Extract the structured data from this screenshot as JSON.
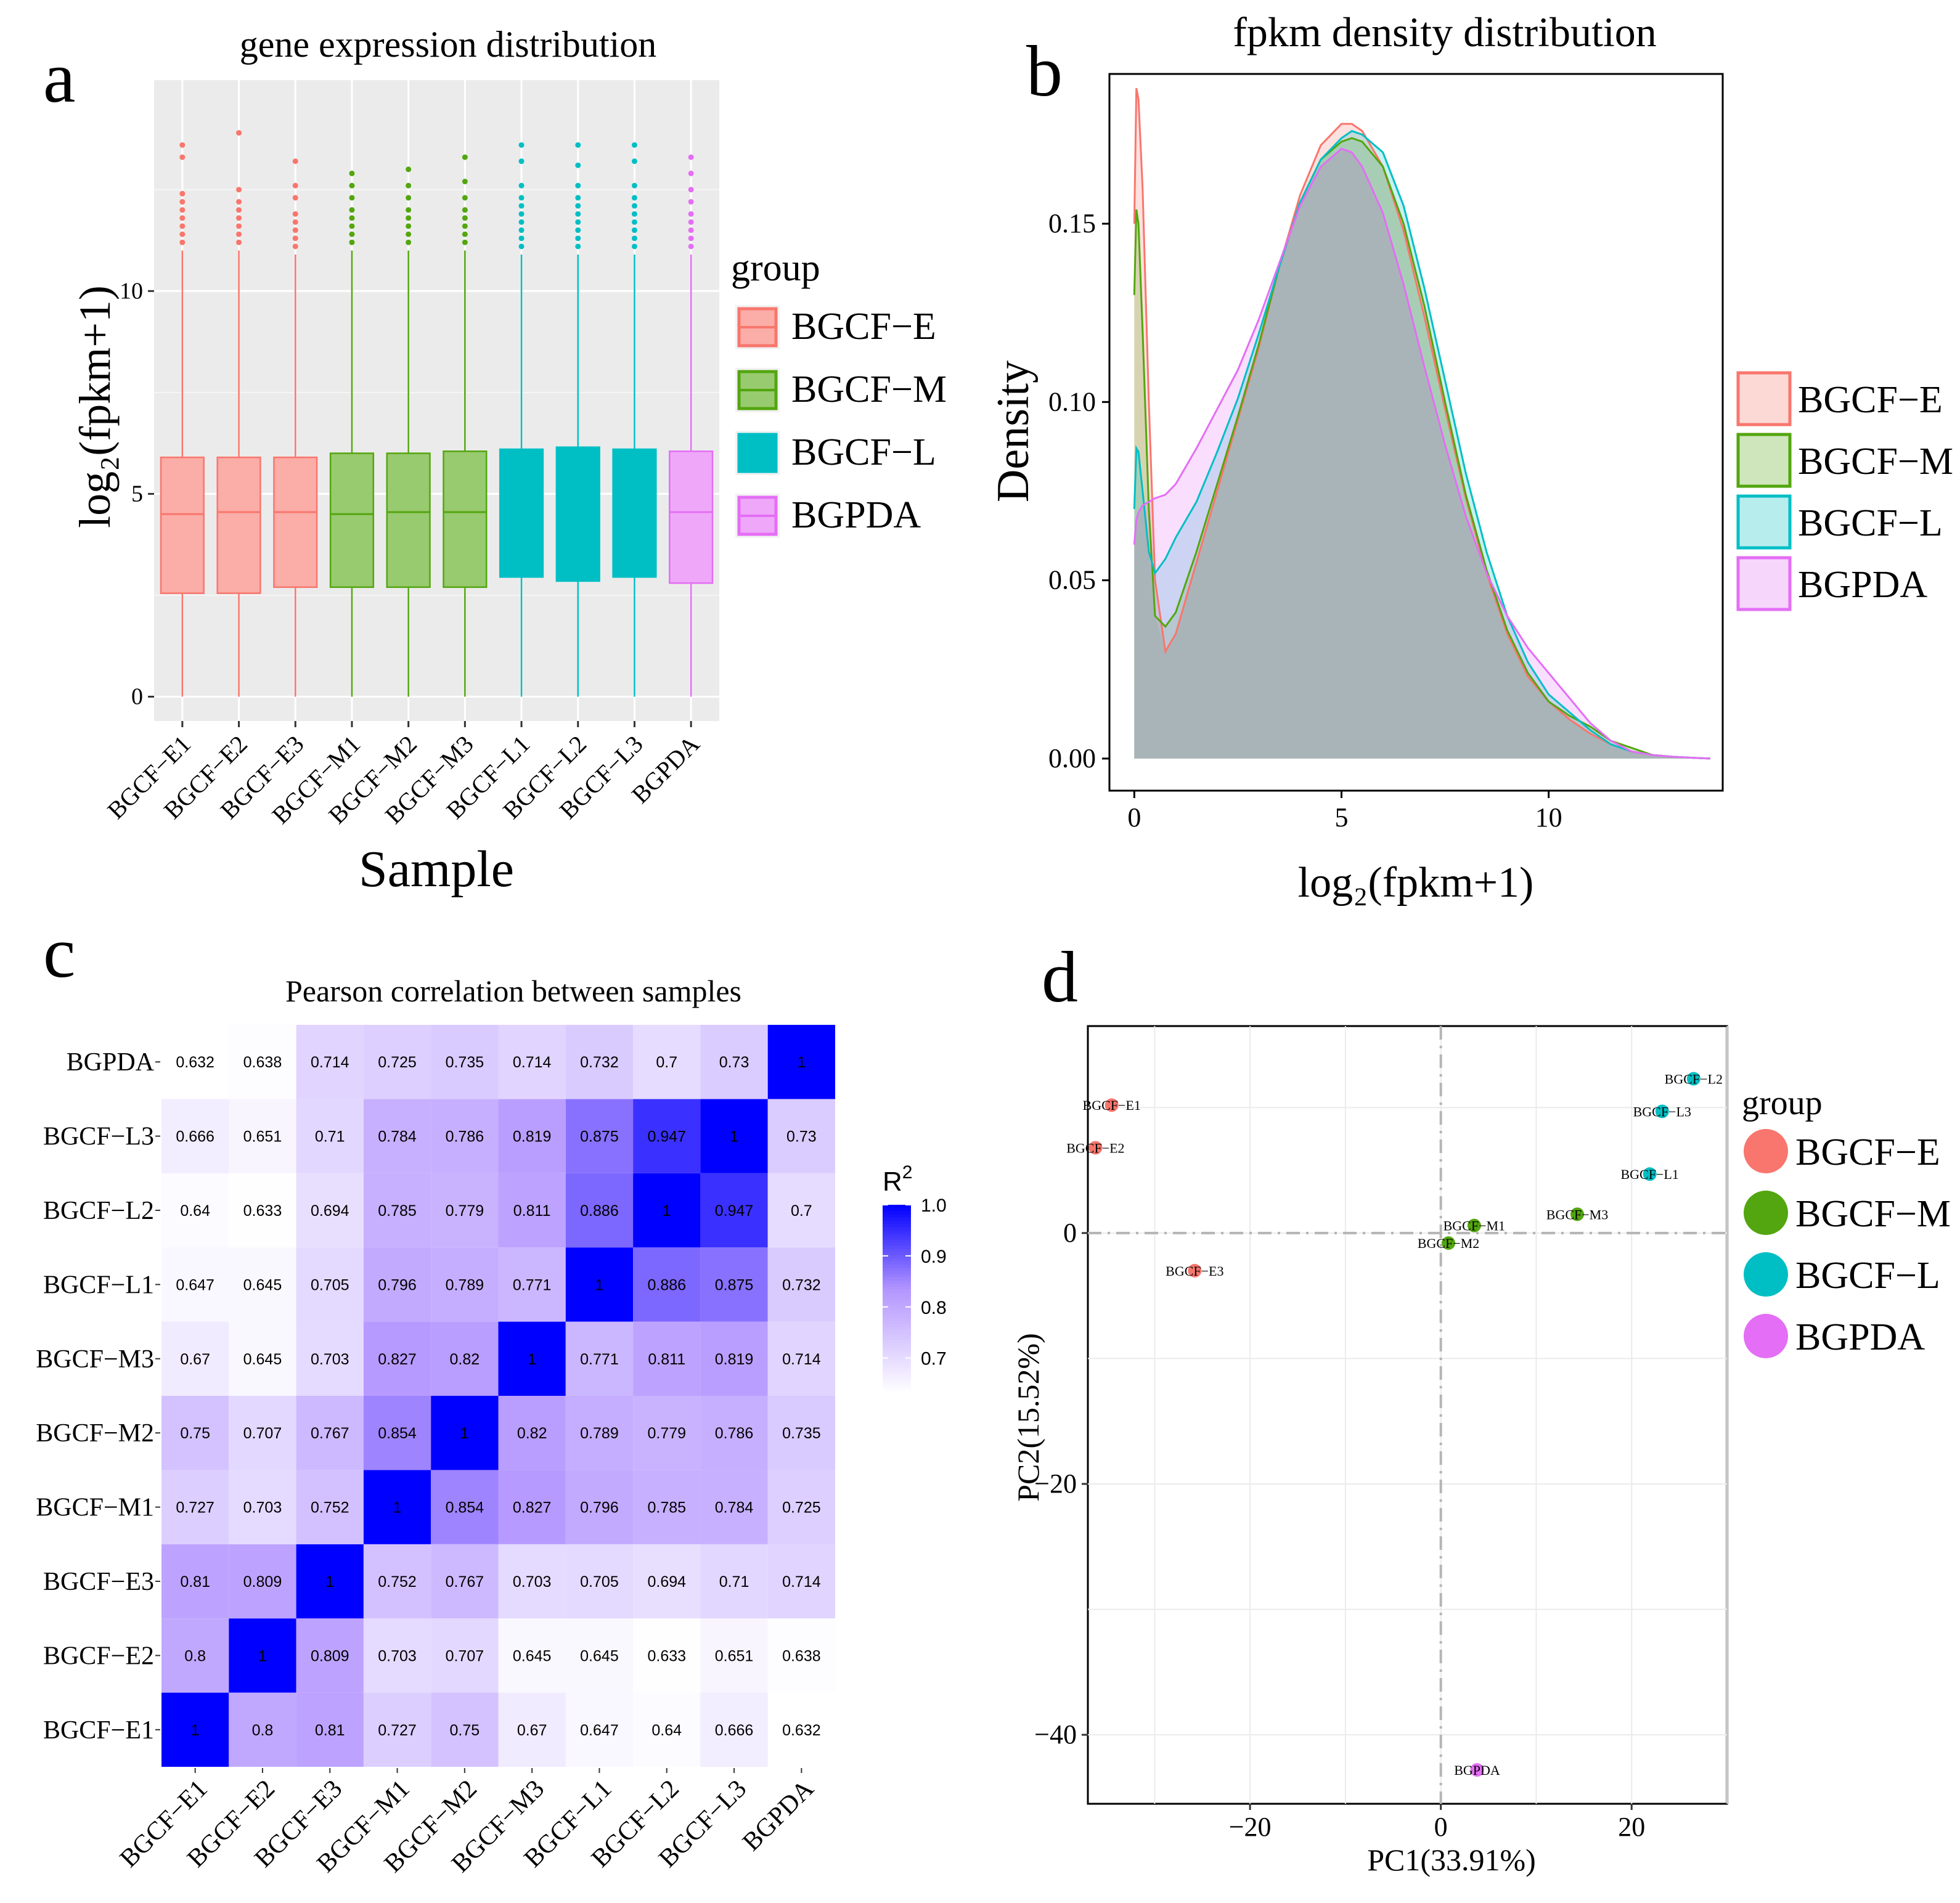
{
  "panel_letters": {
    "a": "a",
    "b": "b",
    "c": "c",
    "d": "d"
  },
  "colors": {
    "E": "#F8766D",
    "M": "#53A60F",
    "L": "#00BFC4",
    "PDA": "#E46EF5",
    "heat_low": "#FFFFFF",
    "heat_high": "#0000FF"
  },
  "legend_title": "group",
  "groups": [
    {
      "label": "BGCF−E",
      "key": "E"
    },
    {
      "label": "BGCF−M",
      "key": "M"
    },
    {
      "label": "BGCF−L",
      "key": "L"
    },
    {
      "label": "BGPDA",
      "key": "PDA"
    }
  ],
  "chart_data": [
    {
      "panel": "a",
      "type": "box",
      "title": "gene expression distribution",
      "xlabel": "Sample",
      "ylabel": "log₂(fpkm+1)",
      "ylim": [
        -0.6,
        15.2
      ],
      "yticks": [
        0,
        5,
        10
      ],
      "categories": [
        "BGCF−E1",
        "BGCF−E2",
        "BGCF−E3",
        "BGCF−M1",
        "BGCF−M2",
        "BGCF−M3",
        "BGCF−L1",
        "BGCF−L2",
        "BGCF−L3",
        "BGPDA"
      ],
      "groups": [
        "E",
        "E",
        "E",
        "M",
        "M",
        "M",
        "L",
        "L",
        "L",
        "PDA"
      ],
      "boxes": [
        {
          "min": 0,
          "q1": 2.55,
          "median": 4.5,
          "q3": 5.9,
          "whisker_high": 11.0,
          "outliers": [
            11.2,
            11.4,
            11.6,
            11.8,
            12.0,
            12.2,
            12.4,
            13.3,
            13.6
          ]
        },
        {
          "min": 0,
          "q1": 2.55,
          "median": 4.55,
          "q3": 5.9,
          "whisker_high": 11.0,
          "outliers": [
            11.2,
            11.4,
            11.6,
            11.8,
            12.0,
            12.2,
            12.5,
            13.9
          ]
        },
        {
          "min": 0,
          "q1": 2.7,
          "median": 4.55,
          "q3": 5.9,
          "whisker_high": 10.9,
          "outliers": [
            11.1,
            11.3,
            11.5,
            11.7,
            11.9,
            12.3,
            12.6,
            13.2
          ]
        },
        {
          "min": 0,
          "q1": 2.7,
          "median": 4.5,
          "q3": 6.0,
          "whisker_high": 11.0,
          "outliers": [
            11.2,
            11.4,
            11.6,
            11.8,
            12.0,
            12.3,
            12.6,
            12.9
          ]
        },
        {
          "min": 0,
          "q1": 2.7,
          "median": 4.55,
          "q3": 6.0,
          "whisker_high": 11.0,
          "outliers": [
            11.2,
            11.4,
            11.6,
            11.8,
            12.0,
            12.3,
            12.6,
            13.0
          ]
        },
        {
          "min": 0,
          "q1": 2.7,
          "median": 4.55,
          "q3": 6.05,
          "whisker_high": 11.0,
          "outliers": [
            11.2,
            11.4,
            11.6,
            11.8,
            12.0,
            12.3,
            12.7,
            13.3
          ]
        },
        {
          "min": 0,
          "q1": 2.95,
          "median": 4.65,
          "q3": 6.1,
          "whisker_high": 10.9,
          "outliers": [
            11.1,
            11.3,
            11.5,
            11.7,
            11.9,
            12.1,
            12.3,
            12.6,
            13.2,
            13.6
          ]
        },
        {
          "min": 0,
          "q1": 2.85,
          "median": 4.65,
          "q3": 6.15,
          "whisker_high": 10.9,
          "outliers": [
            11.1,
            11.3,
            11.5,
            11.7,
            11.9,
            12.1,
            12.3,
            12.6,
            13.1,
            13.6
          ]
        },
        {
          "min": 0,
          "q1": 2.95,
          "median": 4.65,
          "q3": 6.1,
          "whisker_high": 10.9,
          "outliers": [
            11.1,
            11.3,
            11.5,
            11.7,
            11.9,
            12.1,
            12.3,
            12.6,
            13.2,
            13.6
          ]
        },
        {
          "min": 0,
          "q1": 2.8,
          "median": 4.55,
          "q3": 6.05,
          "whisker_high": 10.9,
          "outliers": [
            11.1,
            11.3,
            11.5,
            11.7,
            11.9,
            12.2,
            12.5,
            12.9,
            13.3
          ]
        }
      ]
    },
    {
      "panel": "b",
      "type": "density",
      "title": "fpkm density distribution",
      "xlabel": "log₂(fpkm+1)",
      "ylabel": "Density",
      "xlim": [
        -0.6,
        14.2
      ],
      "ylim": [
        -0.009,
        0.192
      ],
      "xticks": [
        0,
        5,
        10
      ],
      "yticks": [
        0.0,
        0.05,
        0.1,
        0.15
      ],
      "ytick_labels": [
        "0.00",
        "0.05",
        "0.10",
        "0.15"
      ],
      "series": [
        {
          "name": "BGCF−E",
          "group": "E",
          "x": [
            0,
            0.05,
            0.1,
            0.2,
            0.35,
            0.5,
            0.75,
            1,
            1.5,
            2,
            2.5,
            3,
            3.5,
            4,
            4.5,
            5,
            5.25,
            5.5,
            6,
            6.5,
            7,
            7.5,
            8,
            8.5,
            9,
            9.5,
            10,
            10.5,
            11,
            11.5,
            12,
            12.5,
            13,
            13.5,
            13.9
          ],
          "y": [
            0.15,
            0.188,
            0.185,
            0.16,
            0.1,
            0.05,
            0.03,
            0.035,
            0.055,
            0.075,
            0.095,
            0.115,
            0.138,
            0.158,
            0.172,
            0.178,
            0.178,
            0.176,
            0.166,
            0.148,
            0.124,
            0.098,
            0.073,
            0.052,
            0.035,
            0.023,
            0.016,
            0.011,
            0.007,
            0.004,
            0.002,
            0.001,
            0.0005,
            0.0002,
            0
          ]
        },
        {
          "name": "BGCF−M",
          "group": "M",
          "x": [
            0,
            0.05,
            0.1,
            0.2,
            0.35,
            0.5,
            0.75,
            1,
            1.5,
            2,
            2.5,
            3,
            3.5,
            4,
            4.5,
            5,
            5.25,
            5.5,
            6,
            6.5,
            7,
            7.5,
            8,
            8.5,
            9,
            9.5,
            10,
            10.5,
            11,
            11.5,
            12,
            12.5,
            13,
            13.5,
            13.9
          ],
          "y": [
            0.13,
            0.154,
            0.15,
            0.12,
            0.07,
            0.04,
            0.037,
            0.041,
            0.058,
            0.077,
            0.096,
            0.116,
            0.138,
            0.156,
            0.168,
            0.173,
            0.174,
            0.173,
            0.166,
            0.15,
            0.127,
            0.1,
            0.074,
            0.053,
            0.036,
            0.024,
            0.016,
            0.012,
            0.009,
            0.005,
            0.003,
            0.001,
            0.0005,
            0.0002,
            0
          ]
        },
        {
          "name": "BGCF−L",
          "group": "L",
          "x": [
            0,
            0.05,
            0.1,
            0.2,
            0.35,
            0.5,
            0.75,
            1,
            1.5,
            2,
            2.5,
            3,
            3.5,
            4,
            4.5,
            5,
            5.25,
            5.5,
            6,
            6.5,
            7,
            7.5,
            8,
            8.5,
            9,
            9.5,
            10,
            10.5,
            11,
            11.5,
            12,
            12.5,
            13,
            13.5,
            13.9
          ],
          "y": [
            0.07,
            0.087,
            0.086,
            0.075,
            0.058,
            0.052,
            0.056,
            0.062,
            0.072,
            0.086,
            0.101,
            0.119,
            0.138,
            0.156,
            0.168,
            0.174,
            0.176,
            0.175,
            0.17,
            0.155,
            0.132,
            0.106,
            0.08,
            0.058,
            0.04,
            0.027,
            0.018,
            0.013,
            0.008,
            0.004,
            0.002,
            0.001,
            0.0005,
            0.0002,
            0
          ]
        },
        {
          "name": "BGPDA",
          "group": "PDA",
          "x": [
            0,
            0.05,
            0.1,
            0.2,
            0.35,
            0.5,
            0.75,
            1,
            1.5,
            2,
            2.5,
            3,
            3.5,
            4,
            4.5,
            5,
            5.25,
            5.5,
            6,
            6.5,
            7,
            7.5,
            8,
            8.5,
            9,
            9.5,
            10,
            10.5,
            11,
            11.5,
            12,
            12.5,
            13,
            13.5,
            13.9
          ],
          "y": [
            0.06,
            0.067,
            0.069,
            0.071,
            0.072,
            0.073,
            0.074,
            0.077,
            0.087,
            0.098,
            0.109,
            0.123,
            0.139,
            0.155,
            0.166,
            0.171,
            0.17,
            0.166,
            0.153,
            0.133,
            0.11,
            0.088,
            0.068,
            0.052,
            0.04,
            0.031,
            0.024,
            0.017,
            0.01,
            0.005,
            0.002,
            0.001,
            0.0005,
            0.0002,
            0
          ]
        }
      ],
      "overlap_fill": "#A9B4B8"
    },
    {
      "panel": "c",
      "type": "heatmap",
      "title": "Pearson correlation between samples",
      "labels": [
        "BGCF−E1",
        "BGCF−E2",
        "BGCF−E3",
        "BGCF−M1",
        "BGCF−M2",
        "BGCF−M3",
        "BGCF−L1",
        "BGCF−L2",
        "BGCF−L3",
        "BGPDA"
      ],
      "matrix": [
        [
          1,
          0.8,
          0.81,
          0.727,
          0.75,
          0.67,
          0.647,
          0.64,
          0.666,
          0.632
        ],
        [
          0.8,
          1,
          0.809,
          0.703,
          0.707,
          0.645,
          0.645,
          0.633,
          0.651,
          0.638
        ],
        [
          0.81,
          0.809,
          1,
          0.752,
          0.767,
          0.703,
          0.705,
          0.694,
          0.71,
          0.714
        ],
        [
          0.727,
          0.703,
          0.752,
          1,
          0.854,
          0.827,
          0.796,
          0.785,
          0.784,
          0.725
        ],
        [
          0.75,
          0.707,
          0.767,
          0.854,
          1,
          0.82,
          0.789,
          0.779,
          0.786,
          0.735
        ],
        [
          0.67,
          0.645,
          0.703,
          0.827,
          0.82,
          1,
          0.771,
          0.811,
          0.819,
          0.714
        ],
        [
          0.647,
          0.645,
          0.705,
          0.796,
          0.789,
          0.771,
          1,
          0.886,
          0.875,
          0.732
        ],
        [
          0.64,
          0.633,
          0.694,
          0.785,
          0.779,
          0.811,
          0.886,
          1,
          0.947,
          0.7
        ],
        [
          0.666,
          0.651,
          0.71,
          0.784,
          0.786,
          0.819,
          0.875,
          0.947,
          1,
          0.73
        ],
        [
          0.632,
          0.638,
          0.714,
          0.725,
          0.735,
          0.714,
          0.732,
          0.7,
          0.73,
          1
        ]
      ],
      "scale": {
        "title": "R",
        "title_sup": "2",
        "min": 0.632,
        "max": 1.0,
        "ticks": [
          0.7,
          0.8,
          0.9,
          1.0
        ],
        "tick_labels": [
          "0.7",
          "0.8",
          "0.9",
          "1.0"
        ]
      }
    },
    {
      "panel": "d",
      "type": "scatter",
      "xlabel": "PC1(33.91%)",
      "ylabel": "PC2(15.52%)",
      "xlim": [
        -37,
        30
      ],
      "ylim": [
        -45.5,
        16.5
      ],
      "xticks": [
        -20,
        0,
        20
      ],
      "xtick_labels": [
        "−20",
        "0",
        "20"
      ],
      "yticks": [
        0,
        -20,
        -40
      ],
      "ytick_labels": [
        "0",
        "−20",
        "−40"
      ],
      "points": [
        {
          "label": "BGCF−E1",
          "group": "E",
          "x": -34.5,
          "y": 10.2
        },
        {
          "label": "BGCF−E2",
          "group": "E",
          "x": -36.2,
          "y": 6.8
        },
        {
          "label": "BGCF−E3",
          "group": "E",
          "x": -25.8,
          "y": -3.0
        },
        {
          "label": "BGCF−M1",
          "group": "M",
          "x": 3.5,
          "y": 0.6
        },
        {
          "label": "BGCF−M2",
          "group": "M",
          "x": 0.8,
          "y": -0.8
        },
        {
          "label": "BGCF−M3",
          "group": "M",
          "x": 14.3,
          "y": 1.5
        },
        {
          "label": "BGCF−L1",
          "group": "L",
          "x": 21.9,
          "y": 4.7
        },
        {
          "label": "BGCF−L2",
          "group": "L",
          "x": 26.5,
          "y": 12.3
        },
        {
          "label": "BGCF−L3",
          "group": "L",
          "x": 23.2,
          "y": 9.7
        },
        {
          "label": "BGPDA",
          "group": "PDA",
          "x": 3.8,
          "y": -42.8
        }
      ]
    }
  ]
}
